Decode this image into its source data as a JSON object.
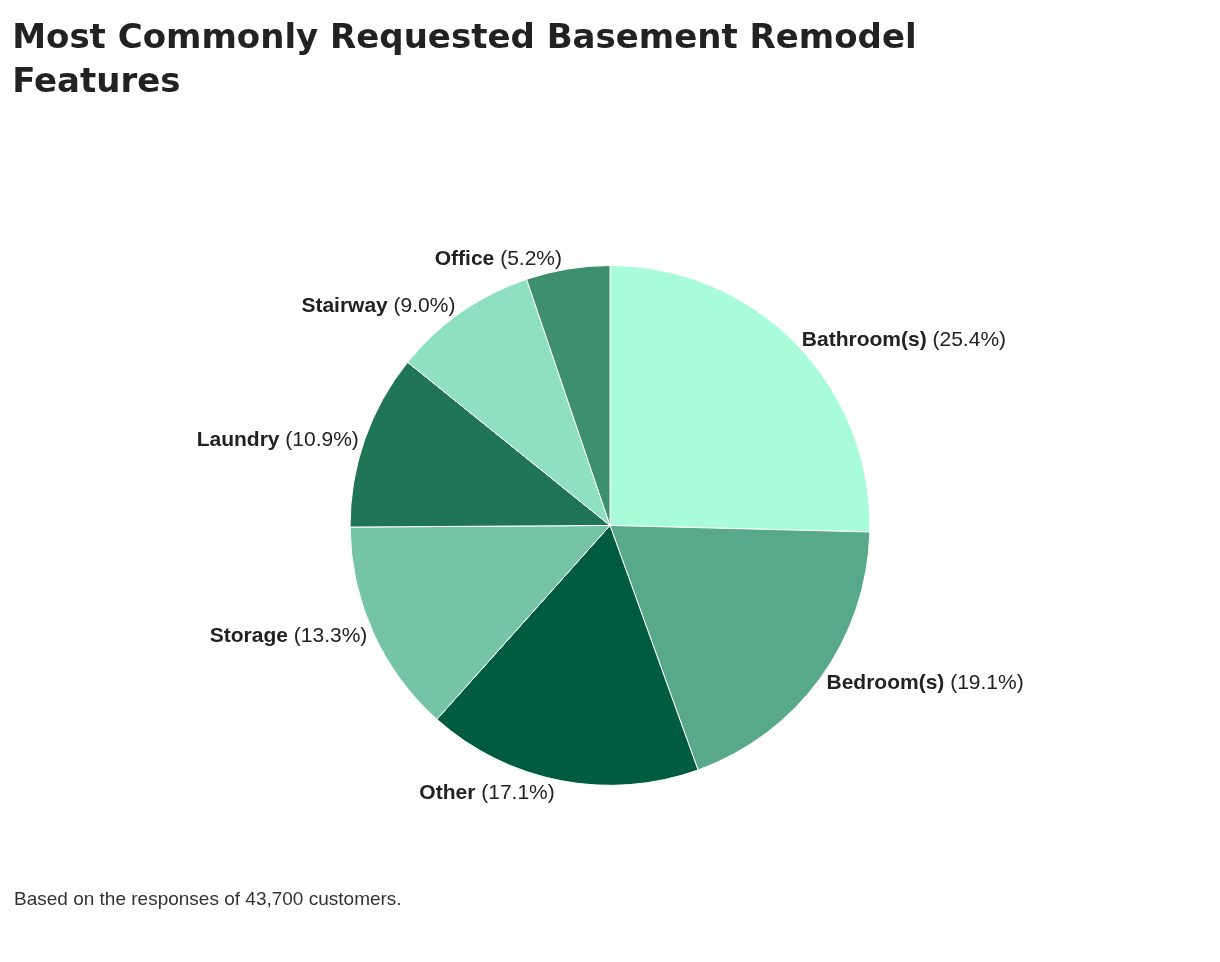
{
  "chart_data": {
    "type": "pie",
    "title": "Most Commonly Requested Basement Remodel Features",
    "categories": [
      "Bathroom(s)",
      "Bedroom(s)",
      "Other",
      "Storage",
      "Laundry",
      "Stairway",
      "Office"
    ],
    "values": [
      25.4,
      19.1,
      17.1,
      13.3,
      10.9,
      9.0,
      5.2
    ],
    "value_labels": [
      "(25.4%)",
      "(19.1%)",
      "(17.1%)",
      "(13.3%)",
      "(10.9%)",
      "(9.0%)",
      "(5.2%)"
    ],
    "colors": [
      "#a8fcd9",
      "#58a98a",
      "#005c40",
      "#74c4a5",
      "#207556",
      "#8fe0c0",
      "#3d8f6e"
    ],
    "annotations": [
      "Based on the responses of 43,700 customers."
    ]
  }
}
